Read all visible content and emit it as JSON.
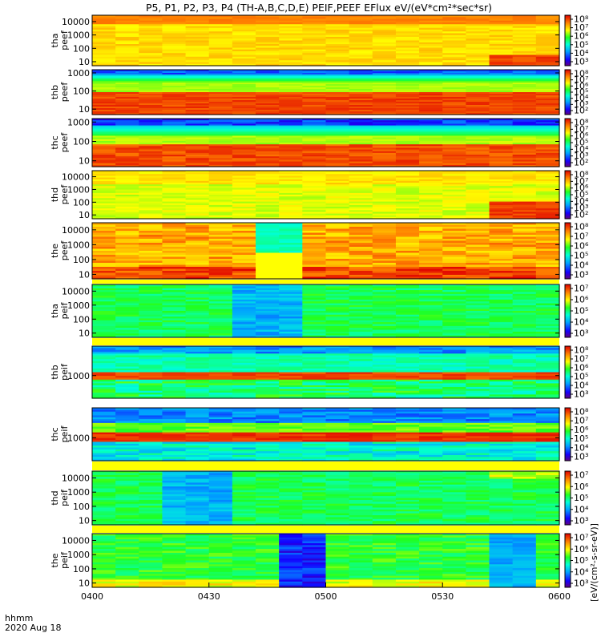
{
  "chart_data": {
    "type": "heatmap",
    "title": "P5, P1, P2, P3, P4 (TH-A,B,C,D,E) PEIF,PEEF EFlux eV/(eV*cm²*sec*sr)",
    "x_ticks": [
      "0400",
      "0430",
      "0500",
      "0530",
      "0600"
    ],
    "x_range": [
      "0400",
      "0600"
    ],
    "x_label_1": "hhmm",
    "x_label_2": "2020 Aug 18",
    "y_axis_scale": "log",
    "colorbar_label": "[eV/(cm²-s-sr-eV)]",
    "panels": [
      {
        "probe": "tha",
        "product": "peef",
        "ylabel": [
          "tha",
          "peef"
        ],
        "yticks": [
          "10000",
          "1000",
          "100",
          "10"
        ],
        "ylim_eV": [
          5,
          30000
        ],
        "cbar_ticks": [
          "10⁸",
          "10⁷",
          "10⁶",
          "10⁵",
          "10⁴",
          "10³"
        ]
      },
      {
        "probe": "thb",
        "product": "peef",
        "ylabel": [
          "thb",
          "peef"
        ],
        "yticks": [
          "1000",
          "100",
          "10"
        ],
        "ylim_eV": [
          5,
          1500
        ],
        "cbar_ticks": [
          "10⁸",
          "10⁷",
          "10⁶",
          "10⁵",
          "10⁴",
          "10³",
          "10²"
        ]
      },
      {
        "probe": "thc",
        "product": "peef",
        "ylabel": [
          "thc",
          "peef"
        ],
        "yticks": [
          "1000",
          "100",
          "10"
        ],
        "ylim_eV": [
          5,
          1500
        ],
        "cbar_ticks": [
          "10⁸",
          "10⁷",
          "10⁶",
          "10⁵",
          "10⁴",
          "10³",
          "10²"
        ]
      },
      {
        "probe": "thd",
        "product": "peef",
        "ylabel": [
          "thd",
          "peef"
        ],
        "yticks": [
          "10000",
          "1000",
          "100",
          "10"
        ],
        "ylim_eV": [
          5,
          30000
        ],
        "cbar_ticks": [
          "10⁸",
          "10⁷",
          "10⁶",
          "10⁵",
          "10⁴",
          "10³",
          "10²"
        ]
      },
      {
        "probe": "the",
        "product": "peef",
        "ylabel": [
          "the",
          "peef"
        ],
        "yticks": [
          "10000",
          "1000",
          "100",
          "10"
        ],
        "ylim_eV": [
          5,
          30000
        ],
        "cbar_ticks": [
          "10⁸",
          "10⁷",
          "10⁶",
          "10⁵",
          "10⁴",
          "10³"
        ]
      },
      {
        "probe": "tha",
        "product": "peif",
        "ylabel": [
          "tha",
          "peif"
        ],
        "yticks": [
          "10000",
          "1000",
          "100",
          "10"
        ],
        "ylim_eV": [
          5,
          30000
        ],
        "cbar_ticks": [
          "10⁷",
          "10⁶",
          "10⁵",
          "10⁴",
          "10³"
        ]
      },
      {
        "probe": "thb",
        "product": "peif",
        "ylabel": [
          "thb",
          "peif"
        ],
        "yticks": [
          "1000"
        ],
        "ylim_eV": [
          100,
          20000
        ],
        "cbar_ticks": [
          "10⁸",
          "10⁷",
          "10⁶",
          "10⁵",
          "10⁴",
          "10³"
        ]
      },
      {
        "probe": "thc",
        "product": "peif",
        "ylabel": [
          "thc",
          "peif"
        ],
        "yticks": [
          "1000"
        ],
        "ylim_eV": [
          100,
          20000
        ],
        "cbar_ticks": [
          "10⁸",
          "10⁷",
          "10⁶",
          "10⁵",
          "10⁴",
          "10³"
        ]
      },
      {
        "probe": "thd",
        "product": "peif",
        "ylabel": [
          "thd",
          "peif"
        ],
        "yticks": [
          "10000",
          "1000",
          "100",
          "10"
        ],
        "ylim_eV": [
          5,
          30000
        ],
        "cbar_ticks": [
          "10⁷",
          "10⁶",
          "10⁵",
          "10⁴",
          "10³"
        ]
      },
      {
        "probe": "the",
        "product": "peif",
        "ylabel": [
          "the",
          "peif"
        ],
        "yticks": [
          "10000",
          "1000",
          "100",
          "10"
        ],
        "ylim_eV": [
          5,
          30000
        ],
        "cbar_ticks": [
          "10⁷",
          "10⁶",
          "10⁵",
          "10⁴",
          "10³"
        ]
      }
    ]
  }
}
